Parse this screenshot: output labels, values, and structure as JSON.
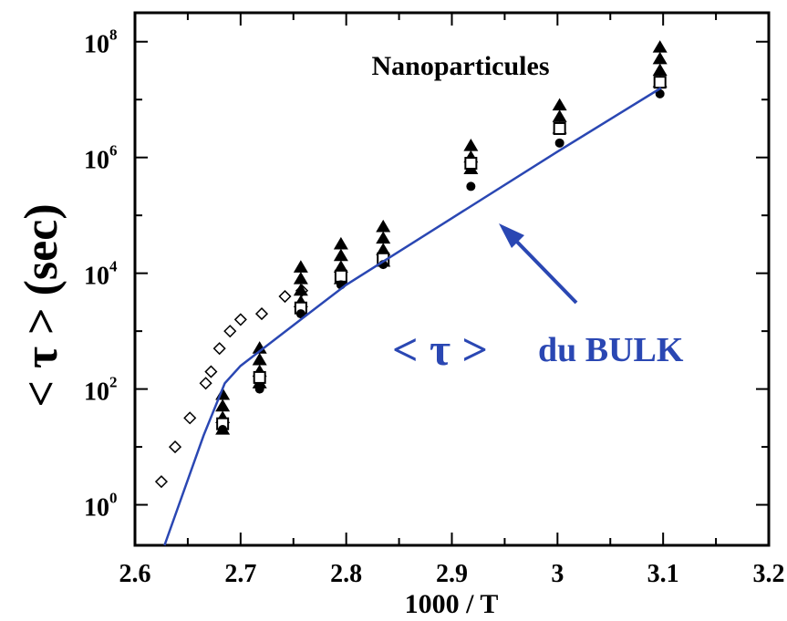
{
  "chart_data": {
    "type": "scatter",
    "xlabel": "1000 / T",
    "ylabel": "< τ > (sec)",
    "xlim": [
      2.6,
      3.2
    ],
    "x_ticks": [
      "2.6",
      "2.7",
      "2.8",
      "2.9",
      "3",
      "3.1",
      "3.2"
    ],
    "y_log": true,
    "ylim_log10": [
      -0.7,
      8.5
    ],
    "y_ticks": [
      {
        "base": "10",
        "exp": "0",
        "log": 0
      },
      {
        "base": "10",
        "exp": "2",
        "log": 2
      },
      {
        "base": "10",
        "exp": "4",
        "log": 4
      },
      {
        "base": "10",
        "exp": "6",
        "log": 6
      },
      {
        "base": "10",
        "exp": "8",
        "log": 8
      }
    ],
    "annotations": {
      "nano": "Nanoparticules",
      "bulk_tau": "< τ >",
      "bulk_rest": "du BULK"
    },
    "colors": {
      "bulk_line": "#2a47b3",
      "markers": "#000000"
    },
    "series": [
      {
        "marker": "diamond-open",
        "points": [
          [
            2.625,
            0.4
          ],
          [
            2.638,
            1.0
          ],
          [
            2.652,
            1.5
          ],
          [
            2.667,
            2.1
          ],
          [
            2.672,
            2.3
          ],
          [
            2.68,
            2.7
          ],
          [
            2.69,
            3.0
          ],
          [
            2.7,
            3.2
          ],
          [
            2.72,
            3.3
          ],
          [
            2.742,
            3.6
          ],
          [
            2.758,
            3.7
          ]
        ]
      },
      {
        "marker": "triangle-filled",
        "points": [
          [
            2.683,
            1.3
          ],
          [
            2.683,
            1.5
          ],
          [
            2.683,
            1.7
          ],
          [
            2.683,
            1.9
          ],
          [
            2.718,
            2.1
          ],
          [
            2.718,
            2.3
          ],
          [
            2.718,
            2.5
          ],
          [
            2.718,
            2.7
          ],
          [
            2.757,
            3.5
          ],
          [
            2.757,
            3.7
          ],
          [
            2.757,
            3.9
          ],
          [
            2.757,
            4.1
          ],
          [
            2.795,
            3.9
          ],
          [
            2.795,
            4.1
          ],
          [
            2.795,
            4.3
          ],
          [
            2.795,
            4.5
          ],
          [
            2.835,
            4.2
          ],
          [
            2.835,
            4.4
          ],
          [
            2.835,
            4.6
          ],
          [
            2.835,
            4.8
          ],
          [
            2.918,
            5.8
          ],
          [
            2.918,
            6.0
          ],
          [
            2.918,
            6.2
          ],
          [
            3.002,
            6.5
          ],
          [
            3.002,
            6.7
          ],
          [
            3.002,
            6.9
          ],
          [
            3.097,
            7.3
          ],
          [
            3.097,
            7.5
          ],
          [
            3.097,
            7.7
          ],
          [
            3.097,
            7.9
          ]
        ]
      },
      {
        "marker": "square-open",
        "points": [
          [
            2.683,
            1.4
          ],
          [
            2.718,
            2.2
          ],
          [
            2.757,
            3.4
          ],
          [
            2.795,
            3.95
          ],
          [
            2.835,
            4.25
          ],
          [
            2.918,
            5.9
          ],
          [
            3.002,
            6.5
          ],
          [
            3.097,
            7.3
          ]
        ]
      },
      {
        "marker": "circle-filled",
        "points": [
          [
            2.683,
            1.3
          ],
          [
            2.718,
            2.0
          ],
          [
            2.757,
            3.3
          ],
          [
            2.795,
            3.8
          ],
          [
            2.835,
            4.15
          ],
          [
            2.918,
            5.5
          ],
          [
            3.002,
            6.25
          ],
          [
            3.097,
            7.1
          ]
        ]
      },
      {
        "name": "< τ > du BULK",
        "marker": "line",
        "points": [
          [
            2.628,
            -0.7
          ],
          [
            2.665,
            1.2
          ],
          [
            2.685,
            2.1
          ],
          [
            2.7,
            2.4
          ],
          [
            2.757,
            3.2
          ],
          [
            2.8,
            3.8
          ],
          [
            2.9,
            4.95
          ],
          [
            3.0,
            6.1
          ],
          [
            3.098,
            7.2
          ]
        ]
      }
    ]
  }
}
